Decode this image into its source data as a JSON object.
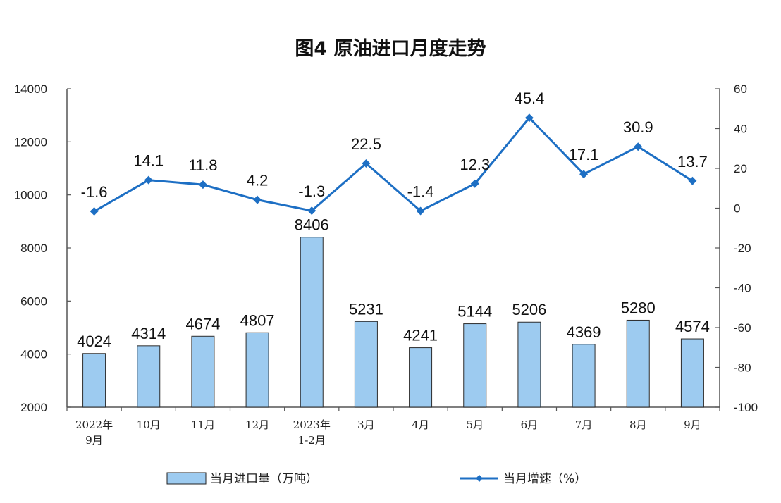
{
  "chart_data": {
    "type": "bar+line",
    "title": "图4  原油进口月度走势",
    "categories": [
      [
        "2022年",
        "9月"
      ],
      [
        "10月"
      ],
      [
        "11月"
      ],
      [
        "12月"
      ],
      [
        "2023年",
        "1-2月"
      ],
      [
        "3月"
      ],
      [
        "4月"
      ],
      [
        "5月"
      ],
      [
        "6月"
      ],
      [
        "7月"
      ],
      [
        "8月"
      ],
      [
        "9月"
      ]
    ],
    "series": [
      {
        "name": "当月进口量（万吨）",
        "type": "bar",
        "axis": "left",
        "color": "#9dcbf0",
        "values": [
          4024,
          4314,
          4674,
          4807,
          8406,
          5231,
          4241,
          5144,
          5206,
          4369,
          5280,
          4574
        ]
      },
      {
        "name": "当月增速（%）",
        "type": "line",
        "axis": "right",
        "color": "#1d6fc4",
        "values": [
          -1.6,
          14.1,
          11.8,
          4.2,
          -1.3,
          22.5,
          -1.4,
          12.3,
          45.4,
          17.1,
          30.9,
          13.7
        ]
      }
    ],
    "y_left": {
      "min": 2000,
      "max": 14000,
      "ticks": [
        2000,
        4000,
        6000,
        8000,
        10000,
        12000,
        14000
      ]
    },
    "y_right": {
      "min": -100,
      "max": 60,
      "ticks": [
        -100,
        -80,
        -60,
        -40,
        -20,
        0,
        20,
        40,
        60
      ]
    },
    "grid": false,
    "legend_position": "bottom"
  }
}
